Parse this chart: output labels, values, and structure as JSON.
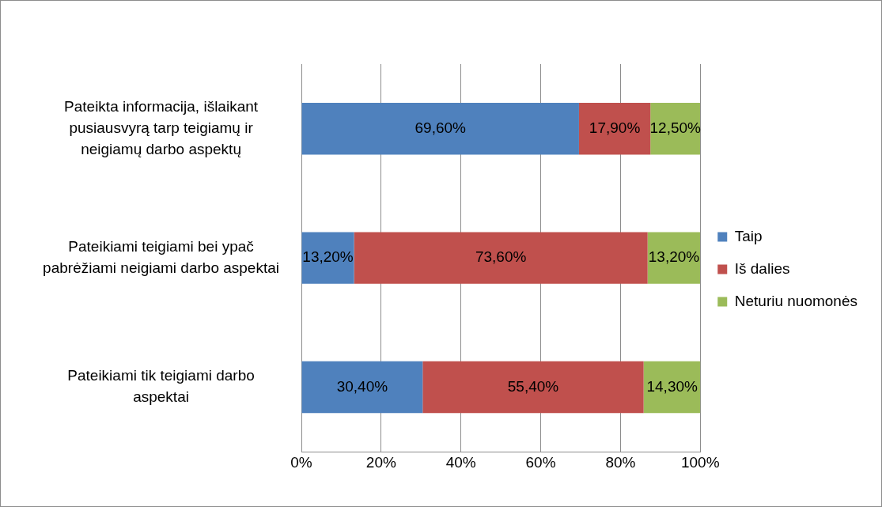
{
  "chart_data": {
    "type": "bar",
    "orientation": "horizontal",
    "stacked": true,
    "categories": [
      "Pateikta informacija, išlaikant pusiausvyrą tarp teigiamų ir neigiamų darbo aspektų",
      "Pateikiami teigiami bei ypač pabrėžiami neigiami darbo aspektai",
      "Pateikiami tik teigiami darbo aspektai"
    ],
    "series": [
      {
        "name": "Taip",
        "color": "#4f81bd",
        "values": [
          69.6,
          13.2,
          30.4
        ],
        "value_labels": [
          "69,60%",
          "13,20%",
          "30,40%"
        ]
      },
      {
        "name": "Iš dalies",
        "color": "#c0504d",
        "values": [
          17.9,
          73.6,
          55.4
        ],
        "value_labels": [
          "17,90%",
          "73,60%",
          "55,40%"
        ]
      },
      {
        "name": "Neturiu nuomonės",
        "color": "#9bbb59",
        "values": [
          12.5,
          13.2,
          14.3
        ],
        "value_labels": [
          "12,50%",
          "13,20%",
          "14,30%"
        ]
      }
    ],
    "xlim": [
      0,
      100
    ],
    "xticks": [
      {
        "value": 0,
        "label": "0%"
      },
      {
        "value": 20,
        "label": "20%"
      },
      {
        "value": 40,
        "label": "40%"
      },
      {
        "value": 60,
        "label": "60%"
      },
      {
        "value": 80,
        "label": "80%"
      },
      {
        "value": 100,
        "label": "100%"
      }
    ],
    "grid": "x",
    "legend": "right"
  }
}
